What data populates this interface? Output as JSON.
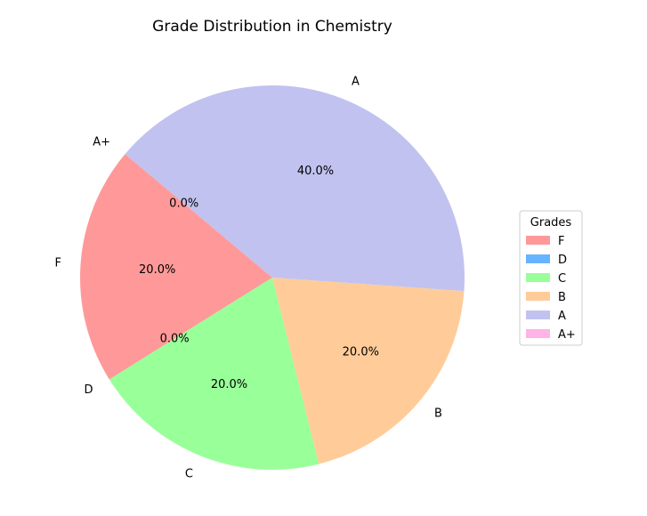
{
  "chart_data": {
    "type": "pie",
    "title": "Grade Distribution in Chemistry",
    "categories": [
      "F",
      "D",
      "C",
      "B",
      "A",
      "A+"
    ],
    "values": [
      20.0,
      0.0,
      20.0,
      20.0,
      40.0,
      0.0
    ],
    "value_labels": [
      "20.0%",
      "0.0%",
      "20.0%",
      "20.0%",
      "40.0%",
      "0.0%"
    ],
    "colors": [
      "#ff9999",
      "#66b3ff",
      "#99ff99",
      "#ffcc99",
      "#c2c2f0",
      "#ffb3e6"
    ],
    "start_angle_deg": 140,
    "direction": "counterclockwise",
    "legend": {
      "title": "Grades",
      "placement": "center-right",
      "entries": [
        "F",
        "D",
        "C",
        "B",
        "A",
        "A+"
      ]
    }
  }
}
